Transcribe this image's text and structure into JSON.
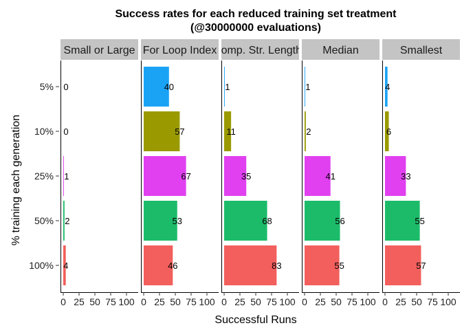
{
  "chart_data": {
    "type": "bar",
    "orientation": "horizontal",
    "title": "Success rates for each reduced training set treatment",
    "subtitle": "(@30000000 evaluations)",
    "xlabel": "Successful Runs",
    "ylabel": "% training each generation",
    "xlim": [
      0,
      100
    ],
    "x_ticks": [
      "0",
      "25",
      "50",
      "75",
      "100"
    ],
    "categories": [
      "5%",
      "10%",
      "25%",
      "50%",
      "100%"
    ],
    "category_colors": {
      "5%": "#1aa3f5",
      "10%": "#9a9a00",
      "25%": "#e040f0",
      "50%": "#1cbb6a",
      "100%": "#f25f5c"
    },
    "grid": false,
    "legend": "none",
    "panels": [
      {
        "name": "Small or Large",
        "values": [
          0,
          0,
          1,
          2,
          4
        ]
      },
      {
        "name": "For Loop Index",
        "values": [
          40,
          57,
          67,
          53,
          46
        ]
      },
      {
        "name": "Comp. Str. Lengths",
        "values": [
          1,
          11,
          35,
          68,
          83
        ]
      },
      {
        "name": "Median",
        "values": [
          1,
          2,
          41,
          56,
          55
        ]
      },
      {
        "name": "Smallest",
        "values": [
          4,
          6,
          33,
          55,
          57
        ]
      }
    ]
  }
}
